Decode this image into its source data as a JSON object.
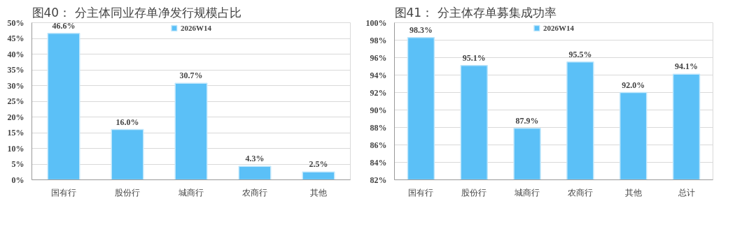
{
  "chart_data": [
    {
      "type": "bar",
      "title": "图40：  分主体同业存单净发行规模占比",
      "categories": [
        "国有行",
        "股份行",
        "城商行",
        "农商行",
        "其他"
      ],
      "series": [
        {
          "name": "2026W14",
          "color": "#5bc0f7",
          "values": [
            46.6,
            16.0,
            30.7,
            4.3,
            2.5
          ],
          "value_labels": [
            "46.6%",
            "16.0%",
            "30.7%",
            "4.3%",
            "2.5%"
          ]
        }
      ],
      "ylim": [
        0,
        50
      ],
      "yticks": [
        {
          "value": 0,
          "label": "0%"
        },
        {
          "value": 5,
          "label": "5%"
        },
        {
          "value": 10,
          "label": "10%"
        },
        {
          "value": 15,
          "label": "15%"
        },
        {
          "value": 20,
          "label": "20%"
        },
        {
          "value": 25,
          "label": "25%"
        },
        {
          "value": 30,
          "label": "30%"
        },
        {
          "value": 35,
          "label": "35%"
        },
        {
          "value": 40,
          "label": "40%"
        },
        {
          "value": 45,
          "label": "45%"
        },
        {
          "value": 50,
          "label": "50%"
        }
      ],
      "grid": "y",
      "legend": "top"
    },
    {
      "type": "bar",
      "title": "图41：  分主体存单募集成功率",
      "categories": [
        "国有行",
        "股份行",
        "城商行",
        "农商行",
        "其他",
        "总计"
      ],
      "series": [
        {
          "name": "2026W14",
          "color": "#5bc0f7",
          "values": [
            98.3,
            95.1,
            87.9,
            95.5,
            92.0,
            94.1
          ],
          "value_labels": [
            "98.3%",
            "95.1%",
            "87.9%",
            "95.5%",
            "92.0%",
            "94.1%"
          ]
        }
      ],
      "ylim": [
        82,
        100
      ],
      "yticks": [
        {
          "value": 82,
          "label": "82%"
        },
        {
          "value": 84,
          "label": "84%"
        },
        {
          "value": 86,
          "label": "86%"
        },
        {
          "value": 88,
          "label": "88%"
        },
        {
          "value": 90,
          "label": "90%"
        },
        {
          "value": 92,
          "label": "92%"
        },
        {
          "value": 94,
          "label": "94%"
        },
        {
          "value": 96,
          "label": "96%"
        },
        {
          "value": 98,
          "label": "98%"
        },
        {
          "value": 100,
          "label": "100%"
        }
      ],
      "grid": "y",
      "legend": "top"
    }
  ]
}
